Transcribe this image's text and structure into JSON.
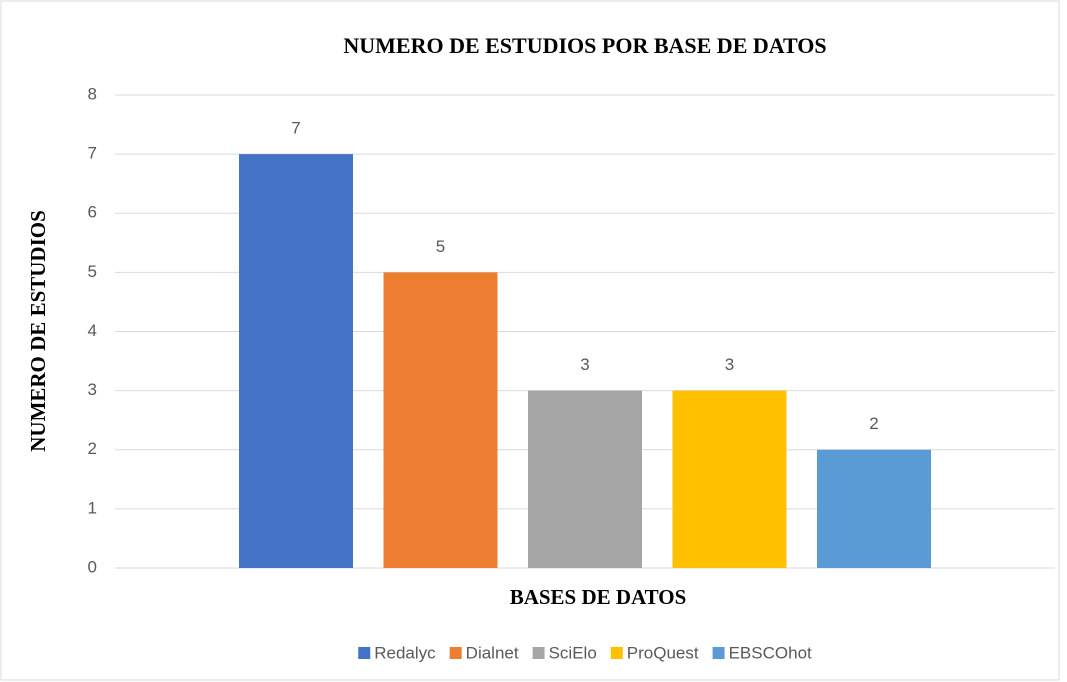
{
  "chart_data": {
    "type": "bar",
    "title": "NUMERO DE ESTUDIOS POR BASE DE DATOS",
    "x_label": "BASES DE DATOS",
    "y_label": "NUMERO DE ESTUDIOS",
    "categories": [
      null
    ],
    "series": [
      {
        "name": "Redalyc",
        "color": "#4472c4",
        "values": [
          7
        ]
      },
      {
        "name": "Dialnet",
        "color": "#ed7d31",
        "values": [
          5
        ]
      },
      {
        "name": "SciElo",
        "color": "#a5a5a5",
        "values": [
          3
        ]
      },
      {
        "name": "ProQuest",
        "color": "#ffc000",
        "values": [
          3
        ]
      },
      {
        "name": "EBSCOhot",
        "color": "#5b9bd5",
        "values": [
          2
        ]
      }
    ],
    "ylim": [
      0,
      8
    ],
    "yticks": [
      0,
      1,
      2,
      3,
      4,
      5,
      6,
      7,
      8
    ],
    "grid": true,
    "legend": "bottom"
  }
}
